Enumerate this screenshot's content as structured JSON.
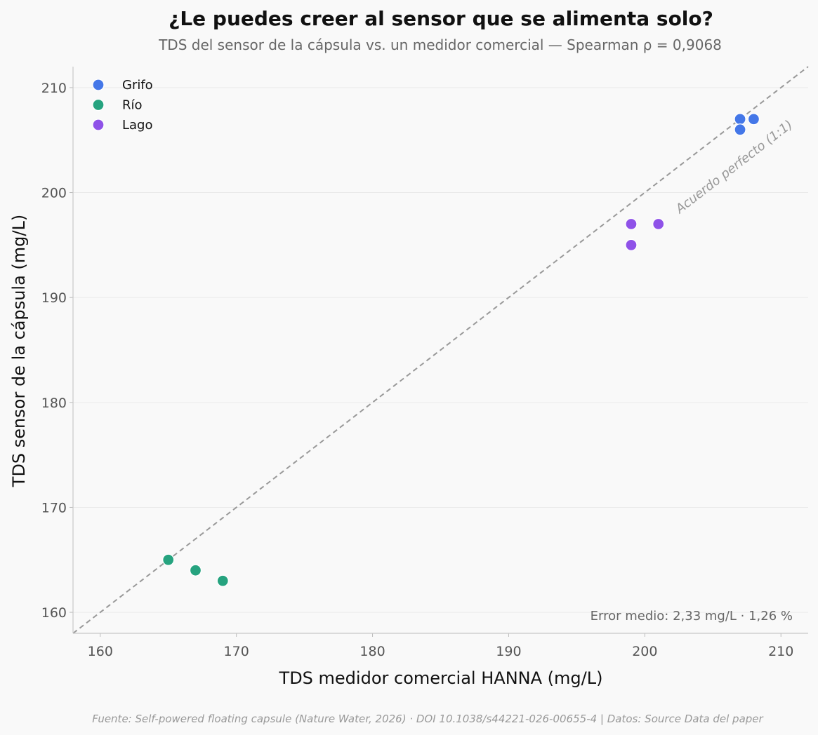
{
  "header": {
    "title": "¿Le puedes creer al sensor que se alimenta solo?",
    "subtitle": "TDS del sensor de la cápsula vs. un medidor comercial — Spearman ρ = 0,9068"
  },
  "footer": {
    "source": "Fuente: Self-powered floating capsule (Nature Water, 2026) · DOI 10.1038/s44221-026-00655-4 | Datos: Source Data del paper"
  },
  "chart_data": {
    "type": "scatter",
    "xlabel": "TDS medidor comercial HANNA (mg/L)",
    "ylabel": "TDS sensor de la cápsula (mg/L)",
    "xlim": [
      158,
      212
    ],
    "ylim": [
      158,
      212
    ],
    "xticks": [
      160,
      170,
      180,
      190,
      200,
      210
    ],
    "yticks": [
      160,
      170,
      180,
      190,
      200,
      210
    ],
    "grid": "horizontal",
    "legend_position": "top-left",
    "reference_line": {
      "label": "Acuerdo perfecto (1:1)",
      "from": [
        158,
        158
      ],
      "to": [
        212,
        212
      ]
    },
    "stat_annotation": "Error medio: 2,33 mg/L  ·  1,26 %",
    "series": [
      {
        "name": "Grifo",
        "color": "#4477e8",
        "points": [
          [
            207,
            207
          ],
          [
            207,
            206
          ],
          [
            208,
            207
          ]
        ]
      },
      {
        "name": "Río",
        "color": "#26a37f",
        "points": [
          [
            165,
            165
          ],
          [
            167,
            164
          ],
          [
            169,
            163
          ]
        ]
      },
      {
        "name": "Lago",
        "color": "#8f52e8",
        "points": [
          [
            199,
            197
          ],
          [
            201,
            197
          ],
          [
            199,
            195
          ]
        ]
      }
    ]
  }
}
